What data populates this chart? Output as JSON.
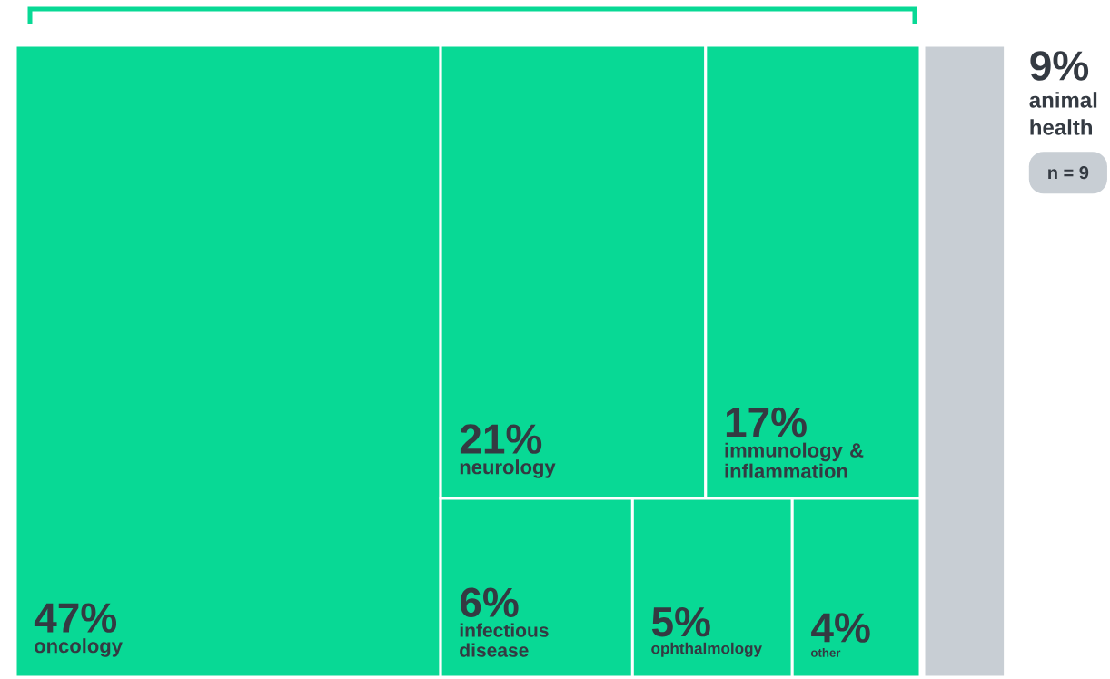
{
  "chart_data": {
    "type": "other",
    "categories": [
      "oncology",
      "neurology",
      "immunology & inflammation",
      "infectious disease",
      "ophthalmology",
      "other",
      "animal health"
    ],
    "values": [
      47,
      21,
      17,
      6,
      5,
      4,
      9
    ],
    "value_labels": [
      "47%",
      "21%",
      "17%",
      "6%",
      "5%",
      "4%",
      "9%"
    ],
    "colors": [
      "#08d995",
      "#08d995",
      "#08d995",
      "#08d995",
      "#08d995",
      "#08d995",
      "#c8ced4"
    ],
    "annotations": [
      "n = 9"
    ]
  }
}
